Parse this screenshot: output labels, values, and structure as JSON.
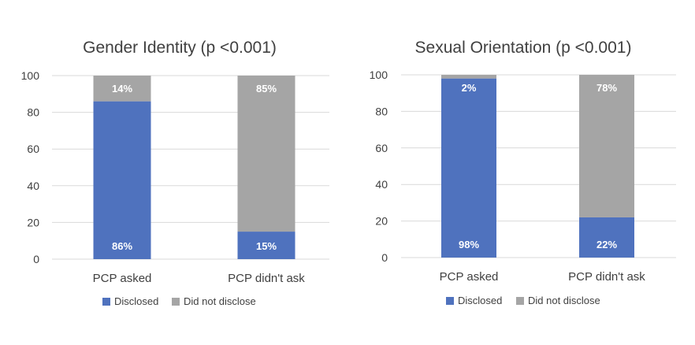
{
  "colors": {
    "disclosed": "#4f72be",
    "not_disclosed": "#a5a5a5",
    "grid": "#d9d9d9",
    "text": "#404040"
  },
  "chart_data": [
    {
      "type": "bar",
      "stacked": true,
      "title": "Gender Identity (p <0.001)",
      "categories": [
        "PCP asked",
        "PCP didn't ask"
      ],
      "ylim": [
        0,
        100
      ],
      "yticks": [
        "0",
        "20",
        "40",
        "60",
        "80",
        "100"
      ],
      "grid": true,
      "legend_position": "bottom",
      "series": [
        {
          "name": "Disclosed",
          "values": [
            86,
            15
          ],
          "labels": [
            "86%",
            "15%"
          ]
        },
        {
          "name": "Did not disclose",
          "values": [
            14,
            85
          ],
          "labels": [
            "14%",
            "85%"
          ]
        }
      ]
    },
    {
      "type": "bar",
      "stacked": true,
      "title": "Sexual Orientation (p <0.001)",
      "categories": [
        "PCP asked",
        "PCP didn't ask"
      ],
      "ylim": [
        0,
        100
      ],
      "yticks": [
        "0",
        "20",
        "40",
        "60",
        "80",
        "100"
      ],
      "grid": true,
      "legend_position": "bottom",
      "series": [
        {
          "name": "Disclosed",
          "values": [
            98,
            22
          ],
          "labels": [
            "98%",
            "22%"
          ]
        },
        {
          "name": "Did not disclose",
          "values": [
            2,
            78
          ],
          "labels": [
            "2%",
            "78%"
          ]
        }
      ]
    }
  ]
}
